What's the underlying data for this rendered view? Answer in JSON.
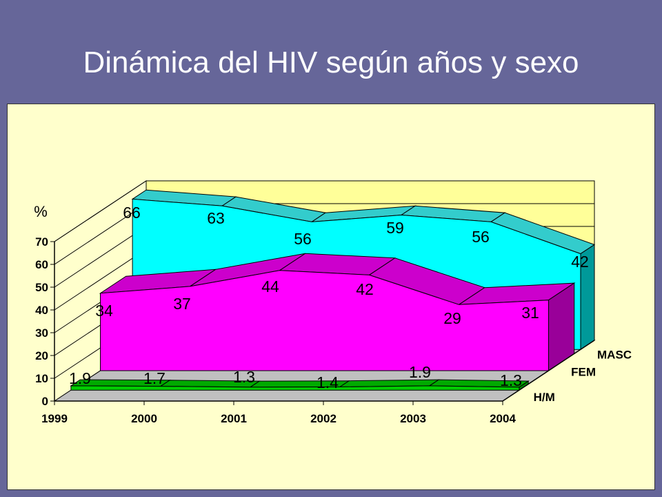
{
  "slide": {
    "title": "Dinámica del HIV según años y sexo"
  },
  "colors": {
    "background": "#666699",
    "plot_area": "#ffffcc",
    "masc_front": "#00ffff",
    "masc_top": "#33cccc",
    "masc_side": "#009999",
    "fem_front": "#ff00ff",
    "fem_top": "#cc00cc",
    "fem_side": "#990099",
    "hm_front": "#00cc00",
    "hm_top": "#00aa00",
    "hm_side": "#008800"
  },
  "chart_data": {
    "type": "area",
    "title": "",
    "ylabel": "%",
    "xlabel": "",
    "ylim": [
      0,
      70
    ],
    "yticks": [
      0,
      10,
      20,
      30,
      40,
      50,
      60,
      70
    ],
    "categories": [
      "1999",
      "2000",
      "2001",
      "2002",
      "2003",
      "2004"
    ],
    "depth_labels": [
      "MASC",
      "FEM",
      "H/M"
    ],
    "grid": true,
    "series": [
      {
        "name": "MASC",
        "values": [
          66,
          63,
          56,
          59,
          56,
          42
        ],
        "labels": [
          "66",
          "63",
          "56",
          "59",
          "56",
          "42"
        ]
      },
      {
        "name": "FEM",
        "values": [
          34,
          37,
          44,
          42,
          29,
          31
        ],
        "labels": [
          "34",
          "37",
          "44",
          "42",
          "29",
          "31"
        ]
      },
      {
        "name": "H/M",
        "values": [
          1.9,
          1.7,
          1.3,
          1.4,
          1.9,
          1.3
        ],
        "labels": [
          "1.9",
          "1.7",
          "1.3",
          "1.4",
          "1.9",
          "1.3"
        ]
      }
    ]
  }
}
